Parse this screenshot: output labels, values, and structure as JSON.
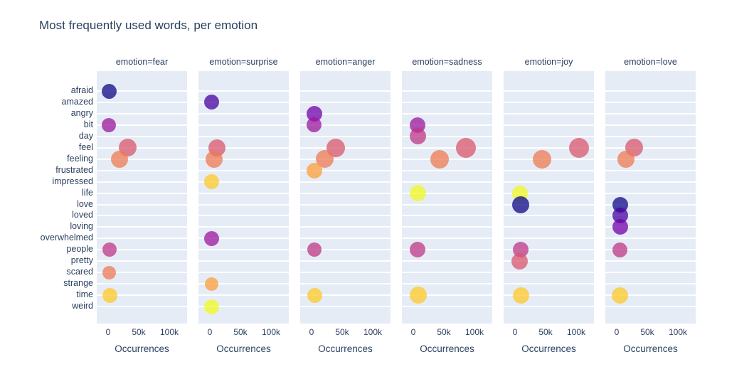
{
  "page": {
    "title": "Most frequently used words, per emotion"
  },
  "chart_data": {
    "type": "scatter",
    "title": "Most frequently used words, per emotion",
    "xlabel": "Occurrences",
    "ylabel": "",
    "facet_field": "emotion",
    "x_tick_labels": [
      "0",
      "50k",
      "100k"
    ],
    "x_tick_values": [
      0,
      50000,
      100000
    ],
    "xlim": [
      -18500,
      129000
    ],
    "grid": "horizontal white gridlines only",
    "legend_position": "none",
    "panel_bg": "#e5ecf6",
    "text_color": "#2a3f5f",
    "marker_opacity": 0.75,
    "categories": [
      "afraid",
      "amazed",
      "angry",
      "bit",
      "day",
      "feel",
      "feeling",
      "frustrated",
      "impressed",
      "life",
      "love",
      "loved",
      "loving",
      "overwhelmed",
      "people",
      "pretty",
      "scared",
      "strange",
      "time",
      "weird"
    ],
    "word_colors": {
      "afraid": "#0d0887",
      "amazed": "#46039f",
      "angry": "#7201a8",
      "bit": "#9c179e",
      "day": "#bd3786",
      "feel": "#d8576b",
      "feeling": "#ed7953",
      "frustrated": "#fb9f3a",
      "impressed": "#fdca26",
      "life": "#f0f921",
      "love": "#0d0887",
      "loved": "#46039f",
      "loving": "#7201a8",
      "overwhelmed": "#9c179e",
      "people": "#bd3786",
      "pretty": "#d8576b",
      "scared": "#ed7953",
      "strange": "#fb9f3a",
      "time": "#fdca26",
      "weird": "#f0f921"
    },
    "facets": [
      {
        "emotion": "fear",
        "label": "emotion=fear",
        "points": [
          {
            "word": "afraid",
            "occurrences": 2000,
            "size": 21
          },
          {
            "word": "bit",
            "occurrences": 1500,
            "size": 20
          },
          {
            "word": "feel",
            "occurrences": 31500,
            "size": 25
          },
          {
            "word": "feeling",
            "occurrences": 18500,
            "size": 24
          },
          {
            "word": "people",
            "occurrences": 2300,
            "size": 20
          },
          {
            "word": "scared",
            "occurrences": 2300,
            "size": 19
          },
          {
            "word": "time",
            "occurrences": 3300,
            "size": 21
          }
        ]
      },
      {
        "emotion": "surprise",
        "label": "emotion=surprise",
        "points": [
          {
            "word": "amazed",
            "occurrences": 2700,
            "size": 21
          },
          {
            "word": "feel",
            "occurrences": 11500,
            "size": 24
          },
          {
            "word": "feeling",
            "occurrences": 6500,
            "size": 24
          },
          {
            "word": "impressed",
            "occurrences": 3000,
            "size": 21
          },
          {
            "word": "overwhelmed",
            "occurrences": 3000,
            "size": 21
          },
          {
            "word": "strange",
            "occurrences": 2800,
            "size": 19
          },
          {
            "word": "weird",
            "occurrences": 2800,
            "size": 21
          }
        ]
      },
      {
        "emotion": "anger",
        "label": "emotion=anger",
        "points": [
          {
            "word": "angry",
            "occurrences": 4300,
            "size": 22
          },
          {
            "word": "bit",
            "occurrences": 3500,
            "size": 21
          },
          {
            "word": "feel",
            "occurrences": 39000,
            "size": 26
          },
          {
            "word": "feeling",
            "occurrences": 21000,
            "size": 25
          },
          {
            "word": "frustrated",
            "occurrences": 4300,
            "size": 22
          },
          {
            "word": "people",
            "occurrences": 5000,
            "size": 20
          },
          {
            "word": "time",
            "occurrences": 5000,
            "size": 21
          }
        ]
      },
      {
        "emotion": "sadness",
        "label": "emotion=sadness",
        "points": [
          {
            "word": "bit",
            "occurrences": 7000,
            "size": 22
          },
          {
            "word": "day",
            "occurrences": 7000,
            "size": 23
          },
          {
            "word": "feel",
            "occurrences": 86000,
            "size": 28
          },
          {
            "word": "feeling",
            "occurrences": 43500,
            "size": 26
          },
          {
            "word": "life",
            "occurrences": 7000,
            "size": 23
          },
          {
            "word": "people",
            "occurrences": 7000,
            "size": 22
          },
          {
            "word": "time",
            "occurrences": 8000,
            "size": 24
          }
        ]
      },
      {
        "emotion": "joy",
        "label": "emotion=joy",
        "points": [
          {
            "word": "feel",
            "occurrences": 105000,
            "size": 28
          },
          {
            "word": "feeling",
            "occurrences": 44000,
            "size": 26
          },
          {
            "word": "life",
            "occurrences": 8000,
            "size": 22
          },
          {
            "word": "love",
            "occurrences": 9000,
            "size": 24
          },
          {
            "word": "people",
            "occurrences": 9000,
            "size": 22
          },
          {
            "word": "pretty",
            "occurrences": 8000,
            "size": 23
          },
          {
            "word": "time",
            "occurrences": 10000,
            "size": 23
          }
        ]
      },
      {
        "emotion": "love",
        "label": "emotion=love",
        "points": [
          {
            "word": "feel",
            "occurrences": 29000,
            "size": 25
          },
          {
            "word": "feeling",
            "occurrences": 15000,
            "size": 24
          },
          {
            "word": "love",
            "occurrences": 5800,
            "size": 22
          },
          {
            "word": "loved",
            "occurrences": 5800,
            "size": 22
          },
          {
            "word": "loving",
            "occurrences": 5800,
            "size": 22
          },
          {
            "word": "people",
            "occurrences": 5000,
            "size": 21
          },
          {
            "word": "time",
            "occurrences": 5800,
            "size": 23
          }
        ]
      }
    ]
  }
}
